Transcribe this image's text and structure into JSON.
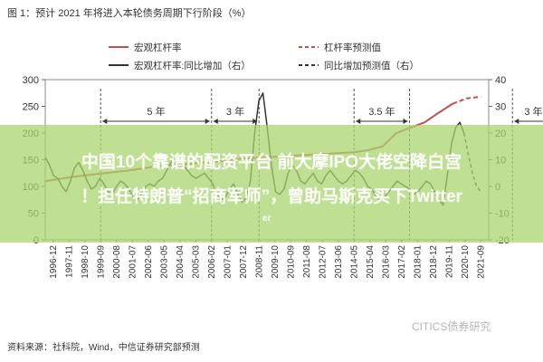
{
  "title": "图 1：预计 2021 年将进入本轮债务周期下行阶段（%）",
  "source": "资料来源：社科院，Wind，中信证券研究部预测",
  "watermark": "CITICS债券研究",
  "banner": {
    "line1": "中国10个靠谱的配资平台 前大摩IPO大佬空降白宫",
    "line2": "！担任特朗普“招商军师”，曾助马斯克买下Twitter",
    "line3": "er"
  },
  "chart_data": {
    "type": "line",
    "title": "图 1：预计 2021 年将进入本轮债务周期下行阶段（%）",
    "left_axis": {
      "range": [
        0,
        300
      ],
      "ticks": [
        0,
        50,
        100,
        150,
        200,
        250,
        300
      ]
    },
    "right_axis": {
      "range": [
        -20,
        40
      ],
      "ticks": [
        -20,
        -10,
        0,
        10,
        20,
        30,
        40
      ]
    },
    "x_categories": [
      "1996-12",
      "1997-11",
      "1998-10",
      "1999-09",
      "2000-08",
      "2001-07",
      "2002-06",
      "2003-05",
      "2004-04",
      "2005-03",
      "2006-02",
      "2007-01",
      "2007-12",
      "2008-11",
      "2009-10",
      "2010-09",
      "2011-08",
      "2012-07",
      "2013-06",
      "2014-05",
      "2015-04",
      "2016-03",
      "2017-02",
      "2018-01",
      "2018-12",
      "2019-11",
      "2020-10",
      "2021-09"
    ],
    "legend": [
      {
        "name": "宏观杠杆率",
        "style": "solid",
        "color": "#c0504d"
      },
      {
        "name": "杠杆率预测值",
        "style": "dashed",
        "color": "#c0504d"
      },
      {
        "name": "宏观杠杆率:同比增加（右）",
        "style": "solid",
        "color": "#333333"
      },
      {
        "name": "同比增加预测值（右）",
        "style": "dashed",
        "color": "#333333"
      }
    ],
    "series": [
      {
        "name": "宏观杠杆率",
        "axis": "left",
        "x": [
          0,
          2,
          4,
          6,
          8,
          10,
          12,
          14,
          16,
          18,
          20,
          22,
          23,
          24,
          25,
          26,
          27,
          28,
          29
        ],
        "values": [
          110,
          118,
          124,
          130,
          138,
          142,
          146,
          152,
          155,
          158,
          161,
          164,
          168,
          175,
          200,
          210,
          220,
          238,
          255
        ]
      },
      {
        "name": "杠杆率预测值",
        "axis": "left",
        "x": [
          29,
          30,
          31
        ],
        "values": [
          255,
          265,
          268
        ]
      },
      {
        "name": "宏观杠杆率:同比增加（右）",
        "axis": "right",
        "x": [
          0,
          1,
          2,
          3,
          4,
          5,
          6,
          7,
          8,
          9,
          10,
          11,
          12,
          13,
          14,
          15,
          16,
          17,
          18,
          19,
          20,
          21,
          22,
          23,
          24,
          25,
          26,
          27,
          28,
          29,
          30,
          31,
          32,
          33,
          34,
          35,
          36,
          37,
          38,
          39,
          40,
          41,
          42,
          43,
          44,
          45,
          46,
          47,
          48,
          49,
          50,
          51,
          52,
          53,
          54,
          55,
          56,
          57,
          58,
          59,
          60,
          61,
          62,
          63,
          64,
          65,
          66,
          67,
          68,
          69,
          70,
          71,
          72,
          73,
          74,
          75,
          76,
          77,
          78,
          79,
          80,
          81,
          82,
          83,
          84,
          85,
          86,
          87,
          88,
          89,
          90,
          91,
          92,
          93,
          94,
          95,
          96,
          97,
          98,
          99,
          100
        ],
        "values": [
          11,
          8,
          4,
          3,
          0,
          -2,
          2,
          7,
          9,
          6,
          2,
          -1,
          0,
          3,
          1,
          -2,
          -3,
          0,
          2,
          1,
          -1,
          -4,
          -5,
          -3,
          0,
          1,
          0,
          2,
          3,
          6,
          9,
          10,
          7,
          8,
          6,
          4,
          3,
          4,
          5,
          3,
          1,
          -3,
          -5,
          -4,
          -1,
          1,
          -3,
          -6,
          -4,
          2,
          20,
          32,
          35,
          22,
          8,
          -2,
          -3,
          -1,
          5,
          8,
          6,
          2,
          1,
          3,
          5,
          2,
          1,
          4,
          6,
          4,
          2,
          1,
          2,
          4,
          6,
          5,
          3,
          0,
          -1,
          -4,
          -5,
          -4,
          -2,
          0,
          2,
          1,
          0,
          -1,
          -3,
          -2,
          0,
          2,
          1,
          -2,
          -5,
          -7,
          4,
          16,
          22,
          24,
          20
        ]
      },
      {
        "name": "同比增加预测值（右）",
        "axis": "right",
        "x": [
          100,
          101,
          102,
          103,
          104
        ],
        "values": [
          20,
          12,
          5,
          0,
          -2
        ]
      }
    ],
    "annotations": [
      {
        "text": "5 年",
        "from_x": 3,
        "to_x": 10
      },
      {
        "text": "3 年",
        "from_x": 10,
        "to_x": 13
      },
      {
        "text": "3.5 年",
        "from_x": 19,
        "to_x": 22.5
      },
      {
        "text": "3 年?",
        "from_x": 29,
        "to_x": 32
      }
    ]
  }
}
